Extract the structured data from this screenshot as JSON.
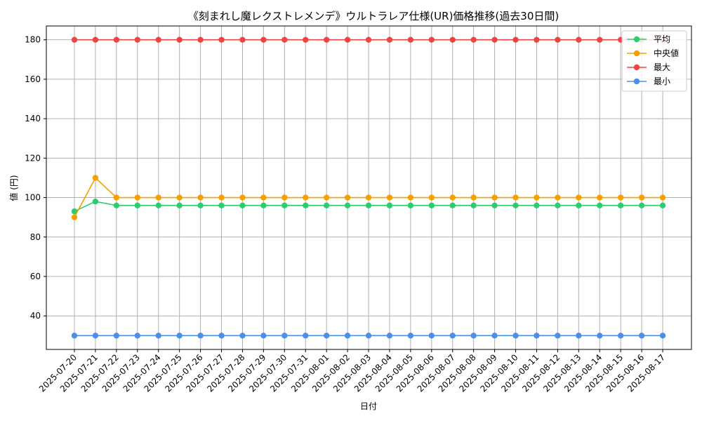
{
  "chart_data": {
    "type": "line",
    "title": "《刻まれし魔レクストレメンデ》ウルトラレア仕様(UR)価格推移(過去30日間)",
    "xlabel": "日付",
    "ylabel": "値 (円)",
    "ylim": [
      23,
      187
    ],
    "yticks": [
      40,
      60,
      80,
      100,
      120,
      140,
      160,
      180
    ],
    "grid": true,
    "legend_position": "top-right",
    "categories": [
      "2025-07-20",
      "2025-07-21",
      "2025-07-22",
      "2025-07-23",
      "2025-07-24",
      "2025-07-25",
      "2025-07-26",
      "2025-07-27",
      "2025-07-28",
      "2025-07-29",
      "2025-07-30",
      "2025-07-31",
      "2025-08-01",
      "2025-08-02",
      "2025-08-03",
      "2025-08-04",
      "2025-08-05",
      "2025-08-06",
      "2025-08-07",
      "2025-08-08",
      "2025-08-09",
      "2025-08-10",
      "2025-08-11",
      "2025-08-12",
      "2025-08-13",
      "2025-08-14",
      "2025-08-15",
      "2025-08-16",
      "2025-08-17"
    ],
    "series": [
      {
        "name": "平均",
        "color": "#2ecc71",
        "values": [
          93,
          98,
          96,
          96,
          96,
          96,
          96,
          96,
          96,
          96,
          96,
          96,
          96,
          96,
          96,
          96,
          96,
          96,
          96,
          96,
          96,
          96,
          96,
          96,
          96,
          96,
          96,
          96,
          96
        ]
      },
      {
        "name": "中央値",
        "color": "#f5a000",
        "values": [
          90,
          110,
          100,
          100,
          100,
          100,
          100,
          100,
          100,
          100,
          100,
          100,
          100,
          100,
          100,
          100,
          100,
          100,
          100,
          100,
          100,
          100,
          100,
          100,
          100,
          100,
          100,
          100,
          100
        ]
      },
      {
        "name": "最大",
        "color": "#f04444",
        "values": [
          180,
          180,
          180,
          180,
          180,
          180,
          180,
          180,
          180,
          180,
          180,
          180,
          180,
          180,
          180,
          180,
          180,
          180,
          180,
          180,
          180,
          180,
          180,
          180,
          180,
          180,
          180,
          180,
          180
        ]
      },
      {
        "name": "最小",
        "color": "#4a90e8",
        "values": [
          30,
          30,
          30,
          30,
          30,
          30,
          30,
          30,
          30,
          30,
          30,
          30,
          30,
          30,
          30,
          30,
          30,
          30,
          30,
          30,
          30,
          30,
          30,
          30,
          30,
          30,
          30,
          30,
          30
        ]
      }
    ]
  }
}
